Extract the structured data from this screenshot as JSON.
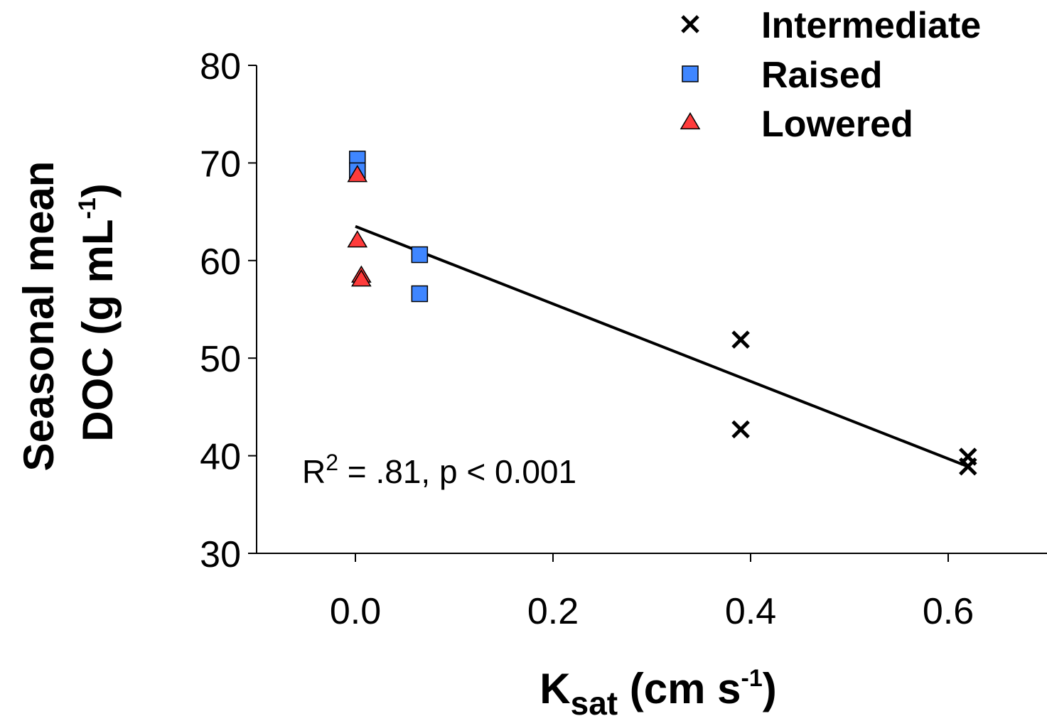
{
  "chart_data": {
    "type": "scatter",
    "xlabel": {
      "main": "K",
      "sub": "sat",
      "rest": " (cm s",
      "sup": "-1",
      "end": ")"
    },
    "ylabel": {
      "line1": "Seasonal mean",
      "line2_main": "DOC (g mL",
      "line2_sup": "-1",
      "line2_end": ")"
    },
    "xlim": [
      -0.1,
      0.7
    ],
    "ylim": [
      30,
      80
    ],
    "x_ticks": [
      0.0,
      0.2,
      0.4,
      0.6
    ],
    "x_tick_labels": [
      "0.0",
      "0.2",
      "0.4",
      "0.6"
    ],
    "y_ticks": [
      30,
      40,
      50,
      60,
      70,
      80
    ],
    "y_tick_labels": [
      "30",
      "40",
      "50",
      "60",
      "70",
      "80"
    ],
    "grid": false,
    "legend_position": "top-right",
    "series": [
      {
        "name": "Intermediate",
        "marker": "x",
        "color": "#000000",
        "points": [
          {
            "x": 0.39,
            "y": 51.9
          },
          {
            "x": 0.39,
            "y": 42.7
          },
          {
            "x": 0.62,
            "y": 39.9
          },
          {
            "x": 0.62,
            "y": 38.9
          }
        ]
      },
      {
        "name": "Raised",
        "marker": "square",
        "color": "#3f86ff",
        "points": [
          {
            "x": 0.002,
            "y": 70.4
          },
          {
            "x": 0.002,
            "y": 69.2
          },
          {
            "x": 0.065,
            "y": 60.6
          },
          {
            "x": 0.065,
            "y": 56.6
          }
        ]
      },
      {
        "name": "Lowered",
        "marker": "triangle",
        "color": "#ff3b3b",
        "points": [
          {
            "x": 0.002,
            "y": 68.7
          },
          {
            "x": 0.002,
            "y": 62.0
          },
          {
            "x": 0.006,
            "y": 58.4
          },
          {
            "x": 0.006,
            "y": 58.0
          }
        ]
      }
    ],
    "trendline": {
      "x": [
        0.0,
        0.62
      ],
      "y": [
        63.5,
        38.9
      ]
    },
    "annotation": {
      "r_main": "R",
      "r_sup": "2",
      "rest": " = .81, p < 0.001"
    }
  }
}
